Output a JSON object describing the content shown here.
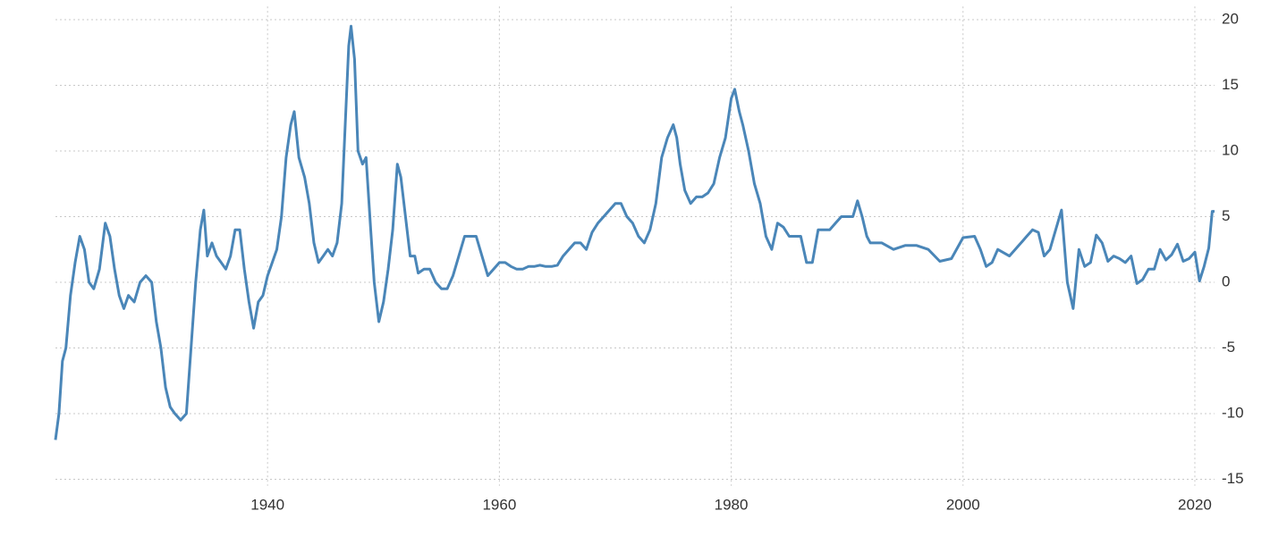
{
  "chart_data": {
    "type": "line",
    "x": [
      1921.7,
      1922.0,
      1922.3,
      1922.6,
      1923.0,
      1923.4,
      1923.8,
      1924.2,
      1924.6,
      1925.0,
      1925.5,
      1926.0,
      1926.4,
      1926.8,
      1927.2,
      1927.6,
      1928.0,
      1928.5,
      1929.0,
      1929.5,
      1930.0,
      1930.4,
      1930.8,
      1931.2,
      1931.6,
      1932.0,
      1932.5,
      1933.0,
      1933.4,
      1933.8,
      1934.2,
      1934.5,
      1934.8,
      1935.2,
      1935.6,
      1936.0,
      1936.4,
      1936.8,
      1937.2,
      1937.6,
      1938.0,
      1938.4,
      1938.8,
      1939.2,
      1939.6,
      1940.0,
      1940.4,
      1940.8,
      1941.2,
      1941.6,
      1942.0,
      1942.3,
      1942.7,
      1943.2,
      1943.6,
      1944.0,
      1944.4,
      1944.8,
      1945.2,
      1945.6,
      1946.0,
      1946.4,
      1946.7,
      1947.0,
      1947.2,
      1947.5,
      1947.8,
      1948.2,
      1948.5,
      1948.9,
      1949.2,
      1949.6,
      1950.0,
      1950.4,
      1950.8,
      1951.2,
      1951.5,
      1951.9,
      1952.3,
      1952.7,
      1953.0,
      1953.5,
      1954.0,
      1954.5,
      1955.0,
      1955.5,
      1956.0,
      1956.5,
      1957.0,
      1957.5,
      1958.0,
      1958.5,
      1959.0,
      1959.5,
      1960.0,
      1960.5,
      1961.0,
      1961.5,
      1962.0,
      1962.5,
      1963.0,
      1963.5,
      1964.0,
      1964.5,
      1965.0,
      1965.5,
      1966.0,
      1966.5,
      1967.0,
      1967.5,
      1968.0,
      1968.5,
      1969.0,
      1969.5,
      1970.0,
      1970.5,
      1971.0,
      1971.5,
      1972.0,
      1972.5,
      1973.0,
      1973.5,
      1974.0,
      1974.5,
      1975.0,
      1975.3,
      1975.6,
      1976.0,
      1976.5,
      1977.0,
      1977.5,
      1978.0,
      1978.5,
      1979.0,
      1979.5,
      1980.0,
      1980.3,
      1980.7,
      1981.0,
      1981.5,
      1982.0,
      1982.5,
      1983.0,
      1983.5,
      1984.0,
      1984.5,
      1985.0,
      1985.5,
      1986.0,
      1986.5,
      1987.0,
      1987.5,
      1988.0,
      1988.5,
      1989.0,
      1989.5,
      1990.0,
      1990.5,
      1990.9,
      1991.3,
      1991.7,
      1992.0,
      1993.0,
      1994.0,
      1995.0,
      1996.0,
      1997.0,
      1998.0,
      1999.0,
      2000.0,
      2001.0,
      2001.5,
      2002.0,
      2002.5,
      2003.0,
      2004.0,
      2005.0,
      2005.5,
      2006.0,
      2006.5,
      2007.0,
      2007.5,
      2008.0,
      2008.5,
      2009.0,
      2009.5,
      2010.0,
      2010.5,
      2011.0,
      2011.5,
      2012.0,
      2012.5,
      2013.0,
      2013.5,
      2014.0,
      2014.5,
      2015.0,
      2015.5,
      2016.0,
      2016.5,
      2017.0,
      2017.5,
      2018.0,
      2018.5,
      2019.0,
      2019.5,
      2020.0,
      2020.4,
      2020.8,
      2021.2,
      2021.5,
      2021.7
    ],
    "values": [
      -12,
      -10,
      -6,
      -5,
      -1,
      1.5,
      3.5,
      2.5,
      0,
      -0.5,
      1,
      4.5,
      3.5,
      1,
      -1,
      -2,
      -1,
      -1.5,
      0,
      0.5,
      0,
      -3,
      -5,
      -8,
      -9.5,
      -10,
      -10.5,
      -10,
      -5,
      0,
      4,
      5.5,
      2,
      3,
      2,
      1.5,
      1,
      2,
      4,
      4,
      1,
      -1.5,
      -3.5,
      -1.5,
      -1,
      0.5,
      1.5,
      2.5,
      5,
      9.5,
      12,
      13,
      9.5,
      8,
      6,
      3,
      1.5,
      2,
      2.5,
      2,
      3,
      6,
      12,
      18,
      19.5,
      17,
      10,
      9,
      9.5,
      4,
      0,
      -3,
      -1.5,
      1,
      4,
      9,
      8,
      5,
      2,
      2,
      0.7,
      1,
      1,
      0,
      -0.5,
      -0.5,
      0.5,
      2,
      3.5,
      3.5,
      3.5,
      2,
      0.5,
      1,
      1.5,
      1.5,
      1.2,
      1,
      1,
      1.2,
      1.2,
      1.3,
      1.2,
      1.2,
      1.3,
      2,
      2.5,
      3,
      3,
      2.5,
      3.8,
      4.5,
      5,
      5.5,
      6,
      6,
      5,
      4.5,
      3.5,
      3,
      4,
      6,
      9.5,
      11,
      12,
      11,
      9,
      7,
      6,
      6.5,
      6.5,
      6.8,
      7.5,
      9.5,
      11,
      14,
      14.7,
      13,
      12,
      10,
      7.5,
      6,
      3.5,
      2.5,
      4.5,
      4.2,
      3.5,
      3.5,
      3.5,
      1.5,
      1.5,
      4,
      4,
      4,
      4.5,
      5,
      5,
      5,
      6.2,
      5,
      3.5,
      3,
      3,
      2.5,
      2.8,
      2.8,
      2.5,
      1.6,
      1.8,
      3.4,
      3.5,
      2.5,
      1.2,
      1.5,
      2.5,
      2,
      3,
      3.5,
      4,
      3.8,
      2,
      2.5,
      4,
      5.5,
      0,
      -2,
      2.5,
      1.2,
      1.5,
      3.6,
      3,
      1.6,
      2,
      1.8,
      1.5,
      2,
      -0.1,
      0.2,
      1,
      1,
      2.5,
      1.7,
      2.1,
      2.9,
      1.6,
      1.8,
      2.3,
      0.1,
      1.2,
      2.6,
      5.4,
      5.4
    ],
    "color": "#4a86b8",
    "xlim": [
      1921.7,
      2021.7
    ],
    "xticks": [
      1940,
      1960,
      1980,
      2000,
      2020
    ],
    "ylim": [
      -15.5,
      21
    ],
    "yticks": [
      -15,
      -10,
      -5,
      0,
      5,
      10,
      15,
      20
    ],
    "grid": true
  }
}
